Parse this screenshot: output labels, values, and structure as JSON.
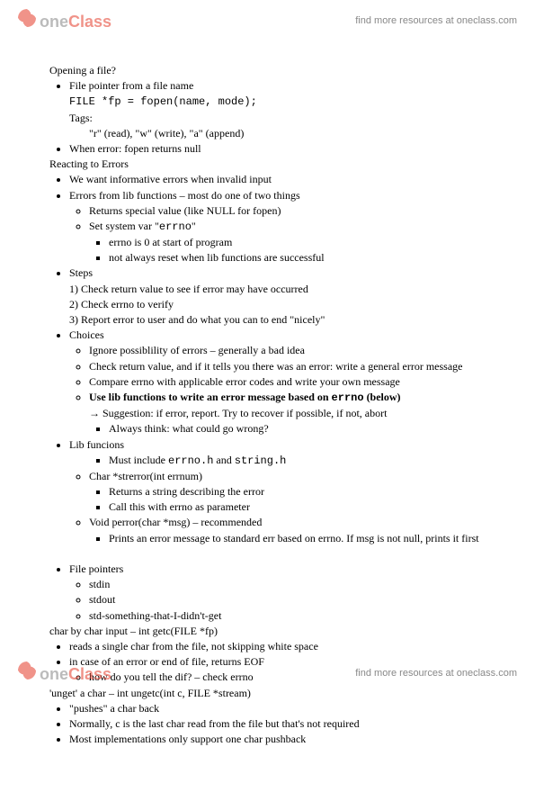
{
  "brand": {
    "one": "one",
    "class": "Class",
    "tagline": "find more resources at oneclass.com"
  },
  "h1": "Opening a file?",
  "l1": "File pointer from a file name",
  "code1": "FILE *fp = fopen(name, mode);",
  "tags": "Tags:",
  "tags_line": "\"r\" (read), \"w\" (write), \"a\" (append)",
  "l2": "When error: fopen returns null",
  "h2": "Reacting to Errors",
  "l3": "We want informative errors when invalid input",
  "l4": "Errors from lib functions – most do one of two things",
  "l4a": "Returns special value (like NULL for fopen)",
  "l4b_pre": "Set system var \"",
  "l4b_code": "errno",
  "l4b_post": "\"",
  "l4b1": "errno is 0 at start of program",
  "l4b2": "not always reset when lib functions are successful",
  "steps": "Steps",
  "s1": "1)  Check return value to see if error may have occurred",
  "s2": "2)  Check errno to verify",
  "s3": "3)  Report error to user and do what you can to end \"nicely\"",
  "ch": "Choices",
  "c1": "Ignore possiblility of errors – generally a bad idea",
  "c2": "Check return value, and if it tells you there was an error: write a general error message",
  "c3": "Compare errno with applicable error codes and write your own message",
  "c4_pre": "Use lib functions to write an error message based on ",
  "c4_code": "errno",
  "c4_post": " (below)",
  "sugg": "Suggestion: if error, report. Try to recover if possible, if not, abort",
  "sugg_a": "Always think: what could go wrong?",
  "lf": "Lib funcions",
  "lf1_pre": "Must include ",
  "lf1_c1": "errno.h",
  "lf1_mid": " and ",
  "lf1_c2": "string.h",
  "lf2": "Char *strerror(int errnum)",
  "lf2a": "Returns a string describing the error",
  "lf2b": "Call this with errno as parameter",
  "lf3": "Void perror(char *msg) – recommended",
  "lf3a": "Prints an error message to standard err based on errno. If msg is not null, prints it first",
  "fp": "File pointers",
  "fp1": "stdin",
  "fp2": "stdout",
  "fp3": "std-something-that-I-didn't-get",
  "cbc": "char by char input – int getc(FILE *fp)",
  "cbc1": "reads a single char from the file, not skipping white space",
  "cbc2": "in case of an error or end of file, returns EOF",
  "cbc2a": "how do you tell the dif? – check errno",
  "ug": "'unget' a char – int ungetc(int c, FILE *stream)",
  "ug1": "\"pushes\" a char back",
  "ug2": "Normally, c is the last char read from the file but that's not required",
  "ug3": "Most implementations only support one char pushback"
}
